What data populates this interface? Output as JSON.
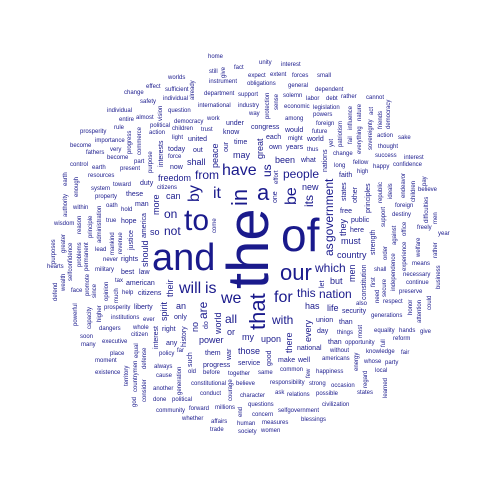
{
  "cloud": {
    "ink_color": "#1a1a8c",
    "words": [
      "the",
      "of",
      "and",
      "to",
      "our",
      "in",
      "a",
      "that",
      "is",
      "we",
      "for",
      "it",
      "be",
      "will",
      "by",
      "have",
      "this",
      "all",
      "are",
      "which",
      "with",
      "as",
      "not",
      "its",
      "us",
      "from",
      "on",
      "people",
      "government",
      "nation",
      "world",
      "has",
      "an",
      "can",
      "my",
      "new",
      "they",
      "upon",
      "their",
      "may",
      "been",
      "must",
      "so",
      "or",
      "no",
      "but",
      "more",
      "every",
      "country",
      "peace",
      "freedom",
      "power",
      "great",
      "life",
      "spirit",
      "those",
      "shall",
      "should",
      "there",
      "men",
      "citizens",
      "free",
      "time",
      "let",
      "one",
      "america",
      "american",
      "states",
      "law",
      "only",
      "own",
      "justice",
      "public",
      "union",
      "years",
      "do",
      "nations",
      "constitution",
      "history",
      "good",
      "what",
      "now",
      "here",
      "other",
      "out",
      "them",
      "national",
      "rights",
      "right",
      "service",
      "liberty",
      "day",
      "man",
      "make",
      "know",
      "today",
      "security",
      "congress",
      "war",
      "united",
      "progress",
      "duty",
      "principles",
      "hope",
      "faith",
      "strength",
      "interest",
      "interests",
      "best",
      "any",
      "would",
      "than",
      "these",
      "our",
      "world",
      "than",
      "each",
      "such",
      "well",
      "under",
      "shall",
      "citizens",
      "first",
      "also",
      "hold",
      "long",
      "things",
      "come",
      "common",
      "help",
      "together",
      "mankind",
      "purpose",
      "whole",
      "support",
      "trust",
      "change",
      "children",
      "need",
      "order",
      "policy",
      "same",
      "true",
      "much",
      "never",
      "ever",
      "high",
      "most",
      "work",
      "way",
      "before",
      "without",
      "toward",
      "yet",
      "against",
      "believe",
      "among",
      "present",
      "citizen",
      "responsibility",
      "republic",
      "constitutional",
      "fellow",
      "democracy",
      "effort",
      "institutions",
      "international",
      "independence",
      "industry",
      "economic",
      "administration",
      "opportunity",
      "prosperity",
      "future",
      "generation",
      "generations",
      "happiness",
      "experience",
      "character",
      "military",
      "protection",
      "revenue",
      "commerce",
      "foreign",
      "property",
      "defense",
      "ideals",
      "patriotism",
      "opinion",
      "everything",
      "destiny",
      "americans",
      "happy",
      "conduct",
      "relations",
      "action",
      "might",
      "always",
      "sense",
      "respect",
      "become",
      "since",
      "equal",
      "support",
      "dangers",
      "energy",
      "equality",
      "permanent",
      "political",
      "office",
      "cause",
      "question",
      "questions",
      "foreign",
      "legislation",
      "executive",
      "department",
      "system",
      "principle",
      "powers",
      "strong",
      "progress",
      "resources",
      "success",
      "promote",
      "preserve",
      "secure",
      "sovereignty",
      "solemn",
      "oath",
      "courage",
      "knowledge",
      "necessary",
      "endeavor",
      "vision",
      "welfare",
      "capacity",
      "millions",
      "problems",
      "countrymen",
      "influence",
      "occasion",
      "individual",
      "possible",
      "labor",
      "reason",
      "political",
      "instrument",
      "selfgovernment",
      "selfconfidence",
      "obligations",
      "confidence",
      "earth",
      "place",
      "another",
      "almost",
      "within",
      "thought",
      "continue",
      "thus",
      "importance",
      "general",
      "whose",
      "means",
      "already",
      "freely",
      "action",
      "concern",
      "forward",
      "children",
      "attention",
      "enough",
      "sufficient",
      "expect",
      "difficulties",
      "consider",
      "reform",
      "regard",
      "rule",
      "hands",
      "face",
      "force",
      "full",
      "higher",
      "fathers",
      "territory",
      "debt",
      "civilization",
      "dependent",
      "safety",
      "entire",
      "extent",
      "human",
      "honor",
      "affairs",
      "powerful",
      "forces",
      "moment",
      "greater",
      "interest",
      "authority",
      "measures",
      "community",
      "wisdom",
      "ask",
      "few",
      "fact",
      "rather",
      "could",
      "soon",
      "whether",
      "done",
      "give",
      "friends",
      "individual",
      "fair",
      "act",
      "many",
      "states",
      "men",
      "old",
      "far",
      "still",
      "party",
      "local",
      "nature",
      "rather",
      "very",
      "women",
      "wealth",
      "business",
      "blessings",
      "existence",
      "democracy",
      "defend",
      "tax",
      "control",
      "pay",
      "fail",
      "prosperity",
      "trade",
      "unity",
      "worlds",
      "lead",
      "small",
      "become",
      "sake",
      "purposes",
      "year",
      "part",
      "believe",
      "effect",
      "light",
      "hearts",
      "interest",
      "learned",
      "give",
      "end",
      "home",
      "cannot",
      "society",
      "god",
      "earth",
      "change"
    ]
  }
}
